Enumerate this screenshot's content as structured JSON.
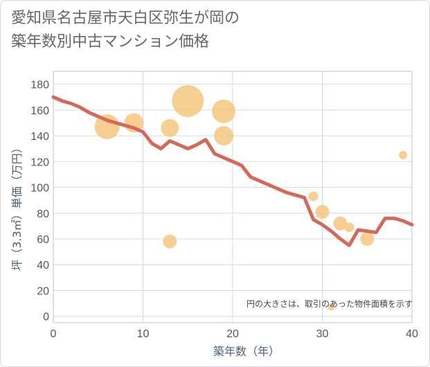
{
  "chart_data": {
    "type": "scatter",
    "title_line1": "愛知県名古屋市天白区弥生が岡の",
    "title_line2": "築年数別中古マンション価格",
    "xlabel": "築年数（年）",
    "ylabel": "坪（3.3㎡）単価（万円）",
    "note": "円の大きさは、取引のあった物件面積を示す",
    "xlim": [
      0,
      40
    ],
    "ylim": [
      -5,
      190
    ],
    "xticks": [
      0,
      10,
      20,
      30,
      40
    ],
    "yticks": [
      0,
      20,
      40,
      60,
      80,
      100,
      120,
      140,
      160,
      180
    ],
    "grid": true,
    "colors": {
      "bubble": "#f5c47a",
      "line": "#d4695a",
      "grid": "#c9dcea",
      "plot_border": "#b8c4ce"
    },
    "bubbles": [
      {
        "x": 6,
        "y": 147,
        "size": 18
      },
      {
        "x": 9,
        "y": 150,
        "size": 14
      },
      {
        "x": 13,
        "y": 146,
        "size": 13
      },
      {
        "x": 13,
        "y": 58,
        "size": 10
      },
      {
        "x": 15,
        "y": 167,
        "size": 23
      },
      {
        "x": 19,
        "y": 159,
        "size": 17
      },
      {
        "x": 19,
        "y": 140,
        "size": 14
      },
      {
        "x": 29,
        "y": 93,
        "size": 7
      },
      {
        "x": 30,
        "y": 81,
        "size": 10
      },
      {
        "x": 31,
        "y": 7,
        "size": 5
      },
      {
        "x": 32,
        "y": 72,
        "size": 10
      },
      {
        "x": 33,
        "y": 69,
        "size": 7
      },
      {
        "x": 35,
        "y": 60,
        "size": 10
      },
      {
        "x": 39,
        "y": 125,
        "size": 6
      }
    ],
    "trend": {
      "x": [
        0,
        1,
        2,
        3,
        4,
        5,
        6,
        7,
        8,
        9,
        10,
        11,
        12,
        13,
        14,
        15,
        16,
        17,
        18,
        19,
        20,
        21,
        22,
        23,
        24,
        25,
        26,
        27,
        28,
        29,
        30,
        31,
        32,
        33,
        34,
        35,
        36,
        37,
        38,
        39,
        40
      ],
      "y": [
        170,
        167,
        165,
        162,
        158,
        155,
        152,
        150,
        148,
        146,
        143,
        134,
        130,
        136,
        133,
        130,
        133,
        137,
        126,
        123,
        120,
        117,
        108,
        105,
        102,
        99,
        96,
        94,
        92,
        75,
        71,
        66,
        60,
        55,
        67,
        66,
        65,
        76,
        76,
        74,
        71
      ]
    }
  }
}
